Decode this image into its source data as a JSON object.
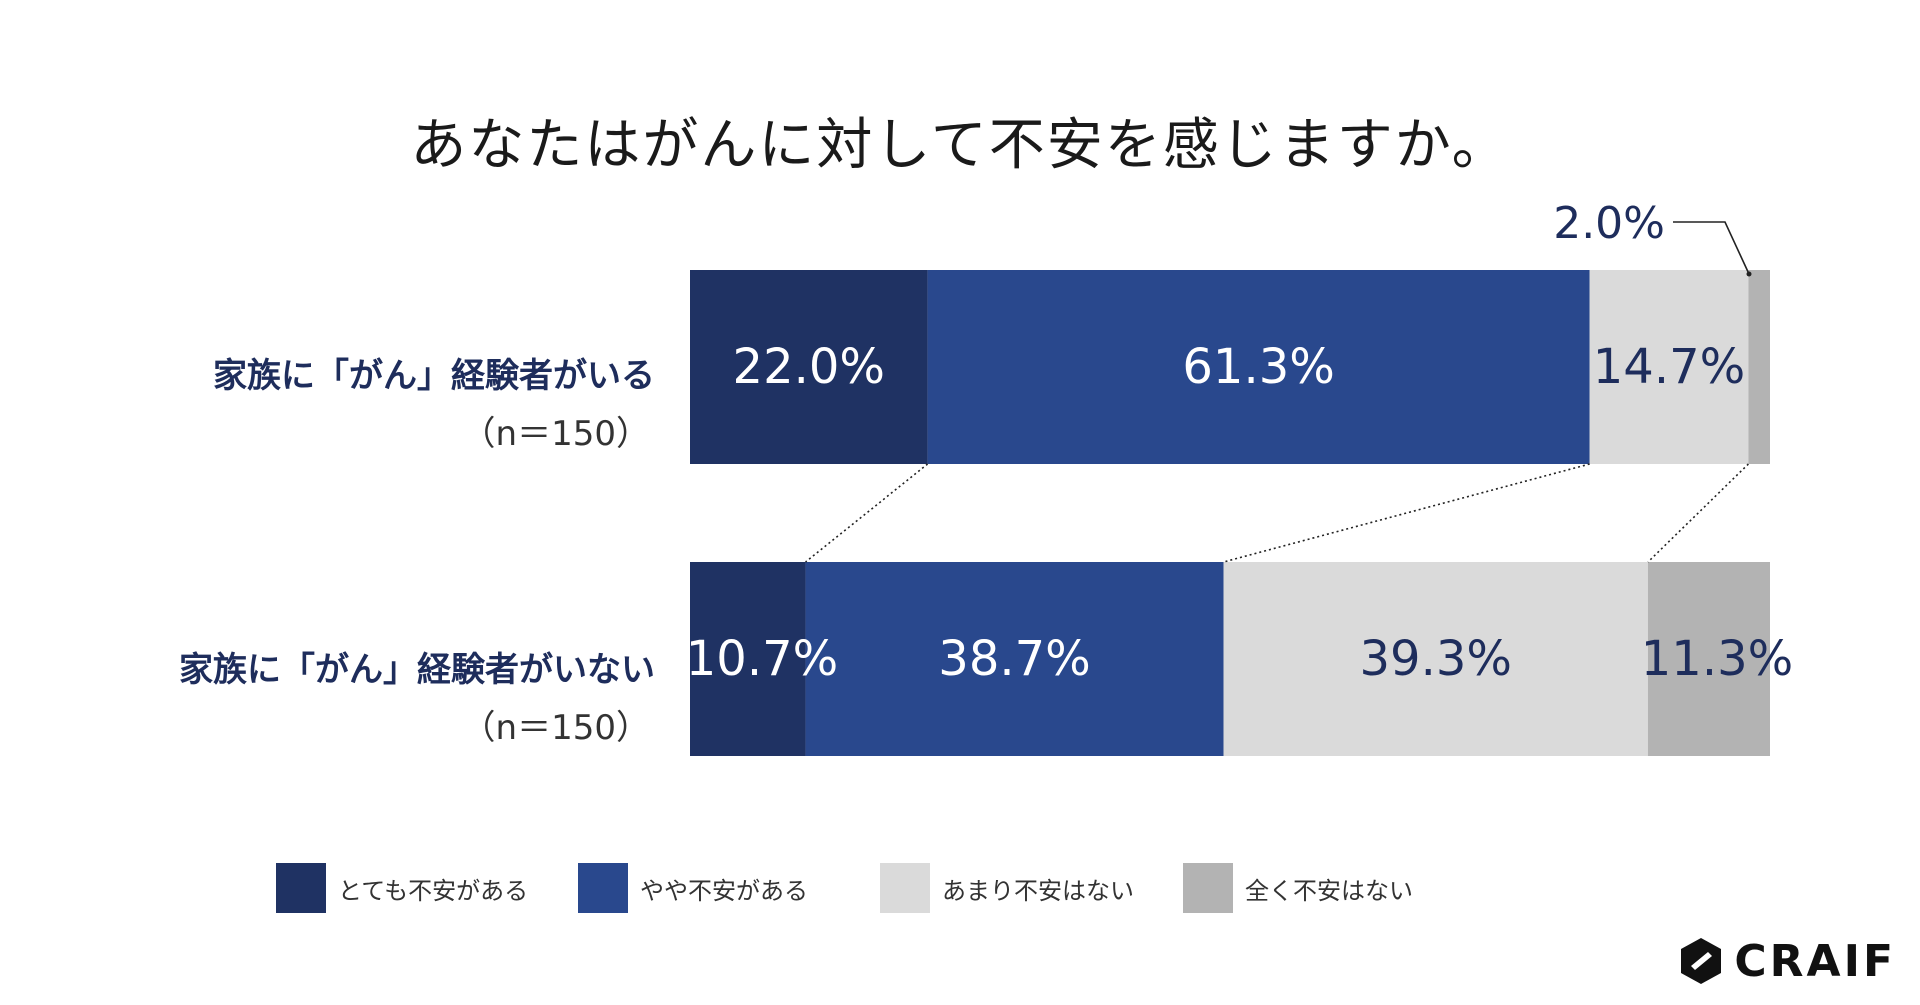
{
  "title": "あなたはがんに対して不安を感じますか。",
  "rows": [
    {
      "label": "家族に「がん」経験者がいる",
      "n": "（n＝150）"
    },
    {
      "label": "家族に「がん」経験者がいない",
      "n": "（n＝150）"
    }
  ],
  "brand": "CRAIF",
  "colors": {
    "very_anxious": "#1f3263",
    "somewhat_anxious": "#29488d",
    "not_very_anxious": "#dadada",
    "not_anxious": "#b3b3b3",
    "label_light": "#ffffff",
    "label_dark": "#1e2d5c"
  },
  "chart_data": {
    "type": "bar",
    "orientation": "horizontal",
    "stacked": true,
    "title": "あなたはがんに対して不安を感じますか。",
    "categories": [
      "家族に「がん」経験者がいる",
      "家族に「がん」経験者がいない"
    ],
    "series": [
      {
        "name": "とても不安がある",
        "values": [
          22.0,
          10.7
        ],
        "labels": [
          "22.0%",
          "10.7%"
        ]
      },
      {
        "name": "やや不安がある",
        "values": [
          61.3,
          38.7
        ],
        "labels": [
          "61.3%",
          "38.7%"
        ]
      },
      {
        "name": "あまり不安はない",
        "values": [
          14.7,
          39.3
        ],
        "labels": [
          "14.7%",
          "39.3%"
        ]
      },
      {
        "name": "全く不安はない",
        "values": [
          2.0,
          11.3
        ],
        "labels": [
          "2.0%",
          "11.3%"
        ]
      }
    ],
    "xlim": [
      0,
      100
    ],
    "legend_position": "bottom",
    "grid": false,
    "connector_lines": true
  }
}
